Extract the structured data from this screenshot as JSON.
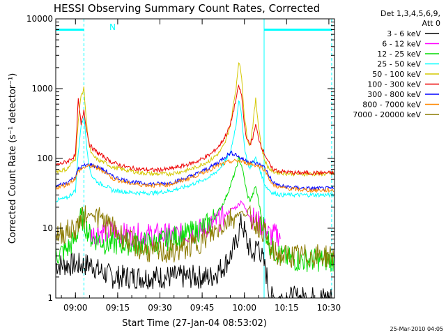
{
  "chart_data": {
    "type": "line",
    "title": "HESSI Observing Summary Count Rates, Corrected",
    "xlabel": "Start Time (27-Jan-04 08:53:02)",
    "ylabel": "Corrected Count Rate (s⁻¹ detector⁻¹)",
    "yscale": "log",
    "ylim": [
      1,
      10000
    ],
    "xlim": [
      "08:53",
      "10:32"
    ],
    "x_ticks": [
      "09:00",
      "09:15",
      "09:30",
      "09:45",
      "10:00",
      "10:15",
      "10:30"
    ],
    "y_ticks": [
      "1",
      "10",
      "100",
      "1000",
      "10000"
    ],
    "grid": false,
    "legend_position": "right",
    "legend_header": [
      "Det 1,3,4,5,6,9,",
      "Att 0"
    ],
    "flag_label": "N",
    "footer_stamp": "25-Mar-2010 04:05",
    "x_minutes": [
      0,
      4,
      7,
      8,
      9,
      10,
      11,
      12,
      13,
      15,
      18,
      20,
      25,
      30,
      35,
      40,
      45,
      50,
      55,
      58,
      60,
      62,
      64,
      65,
      66,
      67,
      68,
      69,
      70,
      71,
      72,
      73,
      74,
      75,
      76,
      77,
      80,
      85,
      90,
      95,
      99
    ],
    "series": [
      {
        "name": "3 - 6 keV",
        "color": "#000000",
        "values": [
          3,
          3,
          3,
          3,
          3,
          3,
          3,
          3,
          3,
          2.5,
          2.2,
          2.0,
          2.0,
          2.0,
          2.0,
          2.0,
          2.0,
          2.0,
          2.0,
          2.5,
          3,
          4,
          6,
          9,
          12,
          9,
          6,
          5,
          4,
          5,
          6,
          4,
          3,
          2,
          1,
          1,
          1,
          1,
          1,
          1,
          1
        ]
      },
      {
        "name": "6 - 12 keV",
        "color": "#ff00ff",
        "values": [
          null,
          null,
          null,
          null,
          null,
          null,
          null,
          8,
          8,
          9,
          9,
          9,
          8,
          8,
          8,
          8,
          8,
          9,
          11,
          13,
          15,
          18,
          20,
          22,
          25,
          20,
          17,
          15,
          14,
          13,
          12,
          11,
          10,
          9,
          8,
          8,
          8,
          null,
          null,
          null,
          null
        ]
      },
      {
        "name": "12 - 25 keV",
        "color": "#00dd00",
        "values": [
          4,
          5,
          7,
          10,
          15,
          12,
          10,
          8,
          7,
          7,
          6,
          6,
          6,
          6,
          6,
          7,
          8,
          9,
          12,
          18,
          25,
          40,
          70,
          100,
          80,
          50,
          30,
          25,
          30,
          40,
          25,
          15,
          10,
          8,
          6,
          5,
          4,
          3.5,
          3.5,
          3.5,
          3.5
        ]
      },
      {
        "name": "25 - 50 keV",
        "color": "#00ffff",
        "values": [
          25,
          27,
          35,
          120,
          300,
          400,
          150,
          70,
          55,
          45,
          40,
          35,
          33,
          32,
          32,
          34,
          38,
          45,
          55,
          70,
          90,
          120,
          300,
          700,
          400,
          150,
          90,
          70,
          90,
          100,
          80,
          60,
          45,
          38,
          35,
          32,
          30,
          30,
          30,
          30,
          30
        ]
      },
      {
        "name": "50 - 100 keV",
        "color": "#d4c800",
        "values": [
          65,
          70,
          100,
          350,
          800,
          1000,
          300,
          140,
          110,
          95,
          85,
          75,
          68,
          62,
          60,
          60,
          65,
          75,
          95,
          120,
          160,
          300,
          1000,
          2500,
          1500,
          400,
          200,
          150,
          300,
          700,
          300,
          150,
          100,
          80,
          70,
          65,
          62,
          60,
          60,
          60,
          60
        ]
      },
      {
        "name": "100 - 300 keV",
        "color": "#ee0000",
        "values": [
          80,
          90,
          110,
          700,
          300,
          500,
          250,
          160,
          140,
          120,
          100,
          88,
          75,
          70,
          68,
          70,
          78,
          90,
          115,
          150,
          200,
          300,
          700,
          1100,
          800,
          300,
          180,
          160,
          200,
          300,
          200,
          150,
          120,
          100,
          80,
          70,
          65,
          62,
          62,
          62,
          62
        ]
      },
      {
        "name": "300 - 800 keV",
        "color": "#0000ff",
        "values": [
          40,
          45,
          55,
          70,
          75,
          78,
          80,
          82,
          80,
          75,
          65,
          55,
          48,
          44,
          43,
          44,
          50,
          60,
          75,
          90,
          105,
          120,
          115,
          105,
          100,
          95,
          92,
          90,
          88,
          85,
          82,
          80,
          75,
          65,
          55,
          45,
          40,
          38,
          37,
          37,
          37
        ]
      },
      {
        "name": "800 - 7000 keV",
        "color": "#ff8800",
        "values": [
          38,
          42,
          52,
          65,
          70,
          74,
          76,
          78,
          77,
          72,
          62,
          52,
          45,
          42,
          41,
          42,
          48,
          57,
          70,
          80,
          85,
          90,
          92,
          92,
          90,
          88,
          86,
          84,
          82,
          80,
          78,
          75,
          70,
          60,
          50,
          42,
          38,
          36,
          35,
          35,
          35
        ]
      },
      {
        "name": "7000 - 20000 keV",
        "color": "#8b7a00",
        "values": [
          8,
          9,
          10,
          12,
          13,
          14,
          15,
          16,
          16,
          14,
          12,
          10,
          7,
          5,
          4.5,
          4.5,
          5,
          6,
          8,
          10,
          12,
          14,
          15,
          16,
          17,
          16,
          15,
          14,
          13,
          12,
          11,
          10,
          9,
          7,
          5,
          4.5,
          4,
          4,
          4,
          4,
          4
        ]
      }
    ],
    "attenuator_flag_intervals": [
      [
        0,
        10
      ],
      [
        74,
        98
      ]
    ],
    "vertical_markers": [
      {
        "minute": 0,
        "style": "solid"
      },
      {
        "minute": 10,
        "style": "dashed"
      },
      {
        "minute": 74,
        "style": "solid"
      },
      {
        "minute": 98,
        "style": "dashed"
      }
    ]
  }
}
